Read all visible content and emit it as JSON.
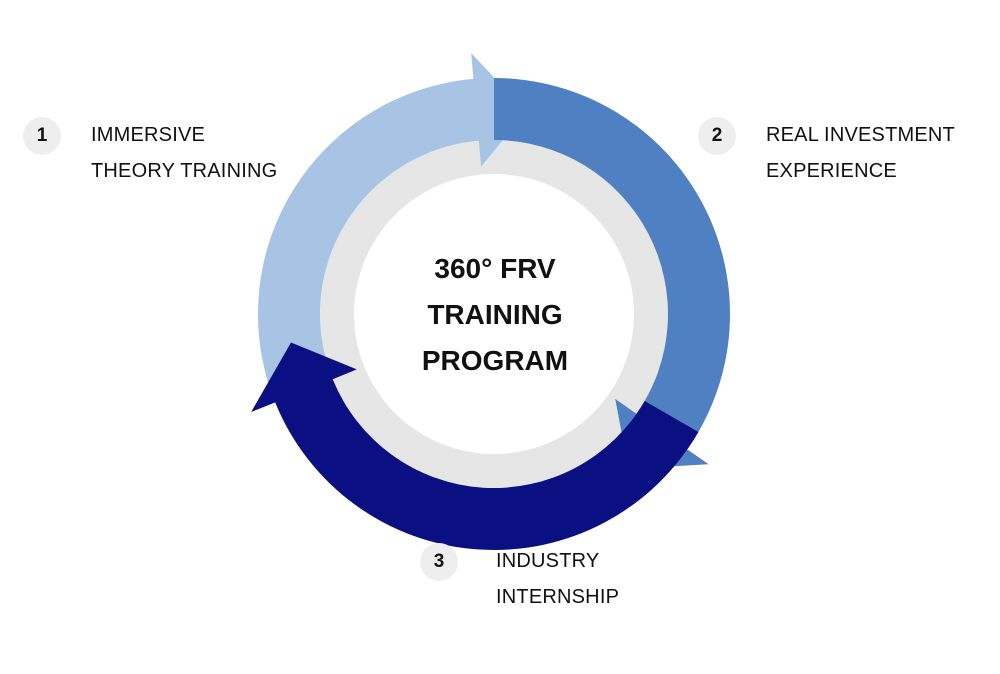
{
  "center": {
    "line1": "360° FRV",
    "line2": "TRAINING",
    "line3": "PROGRAM"
  },
  "steps": [
    {
      "number": "1",
      "line1": "IMMERSIVE",
      "line2": "THEORY TRAINING",
      "color": "#A7C4E5"
    },
    {
      "number": "2",
      "line1": "REAL INVESTMENT",
      "line2": "EXPERIENCE",
      "color": "#4F81C2"
    },
    {
      "number": "3",
      "line1": "INDUSTRY",
      "line2": "INTERNSHIP",
      "color": "#0A0F82"
    }
  ],
  "ring_color": "#E6E6E6"
}
